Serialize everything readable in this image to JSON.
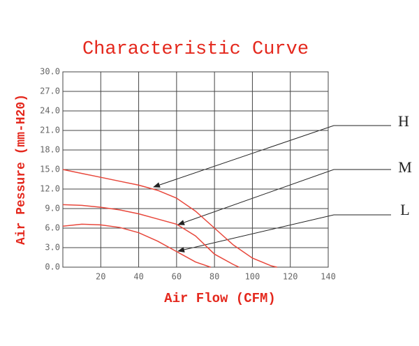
{
  "chart_data": {
    "type": "line",
    "title": "Characteristic Curve",
    "x_label": "Air Flow (CFM)",
    "y_label": "Air Pessure (mm-H20)",
    "xlim": [
      0,
      140
    ],
    "xticks": [
      20,
      40,
      60,
      80,
      100,
      120,
      140
    ],
    "ylim": [
      0,
      30
    ],
    "yticks": [
      {
        "value": 0,
        "label": "0.0"
      },
      {
        "value": 3,
        "label": "3.0"
      },
      {
        "value": 6,
        "label": "6.0"
      },
      {
        "value": 9,
        "label": "9.0"
      },
      {
        "value": 12,
        "label": "12.0"
      },
      {
        "value": 15,
        "label": "15.0"
      },
      {
        "value": 18,
        "label": "18.0"
      },
      {
        "value": 21,
        "label": "21.0"
      },
      {
        "value": 24,
        "label": "24.0"
      },
      {
        "value": 27,
        "label": "27.0"
      },
      {
        "value": 30,
        "label": "30.0"
      }
    ],
    "grid": true,
    "series": [
      {
        "name": "H",
        "color": "#e8473b",
        "x": [
          0,
          10,
          20,
          30,
          40,
          50,
          60,
          70,
          80,
          90,
          100,
          110,
          113
        ],
        "values": [
          15,
          14.4,
          13.8,
          13.2,
          12.6,
          11.8,
          10.6,
          8.6,
          6,
          3.4,
          1.4,
          0.2,
          0
        ]
      },
      {
        "name": "M",
        "color": "#e8473b",
        "x": [
          0,
          10,
          20,
          30,
          40,
          50,
          60,
          70,
          80,
          90,
          93
        ],
        "values": [
          9.6,
          9.5,
          9.2,
          8.8,
          8.2,
          7.4,
          6.6,
          4.8,
          2,
          0.4,
          0
        ]
      },
      {
        "name": "L",
        "color": "#e8473b",
        "x": [
          0,
          10,
          20,
          30,
          40,
          50,
          60,
          70,
          78
        ],
        "values": [
          6.3,
          6.6,
          6.5,
          6.1,
          5.3,
          4,
          2.4,
          0.8,
          0
        ]
      }
    ]
  }
}
